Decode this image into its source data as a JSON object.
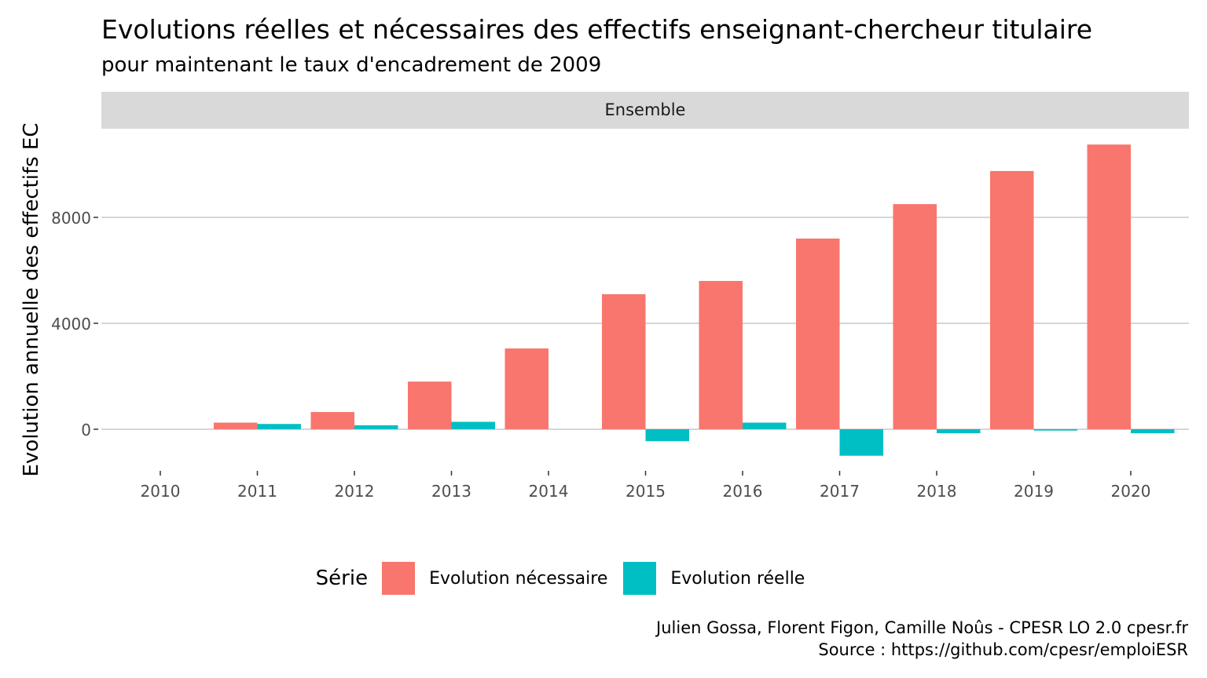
{
  "title": "Evolutions réelles et nécessaires des effectifs enseignant-chercheur titulaire",
  "subtitle": "pour maintenant le taux d'encadrement de 2009",
  "facet_label": "Ensemble",
  "caption": {
    "line1": "Julien Gossa, Florent Figon, Camille Noûs - CPESR LO 2.0 cpesr.fr",
    "line2": "Source : https://github.com/cpesr/emploiESR"
  },
  "chart_data": {
    "type": "bar",
    "ylabel": "Evolution annuelle des effectifs EC",
    "xlabel": "",
    "categories": [
      "2010",
      "2011",
      "2012",
      "2013",
      "2014",
      "2015",
      "2016",
      "2017",
      "2018",
      "2019",
      "2020"
    ],
    "yticks": [
      0,
      4000,
      8000
    ],
    "ylim": [
      -1300,
      11000
    ],
    "grid": true,
    "legend_title": "Série",
    "legend_position": "bottom",
    "series": [
      {
        "name": "Evolution nécessaire",
        "color": "#F8766D",
        "values": [
          0,
          250,
          650,
          1800,
          3050,
          5100,
          5600,
          7200,
          8500,
          9750,
          10750
        ]
      },
      {
        "name": "Evolution réelle",
        "color": "#00BFC4",
        "values": [
          0,
          200,
          150,
          280,
          0,
          -450,
          250,
          -1000,
          -150,
          -50,
          -150
        ]
      }
    ]
  }
}
